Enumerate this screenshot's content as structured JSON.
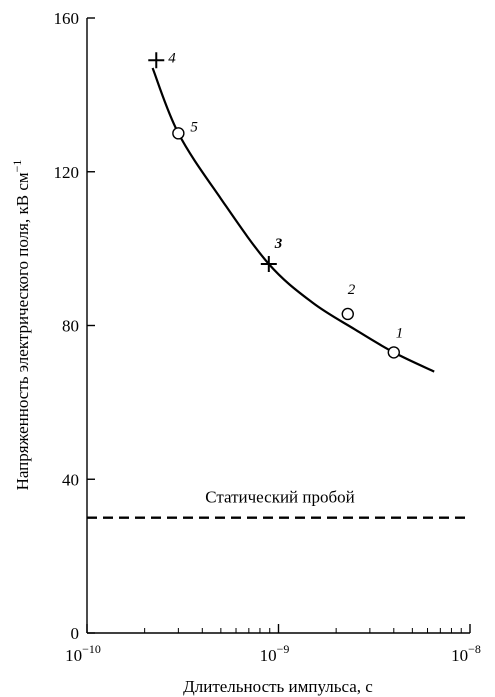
{
  "chart_data": {
    "type": "scatter",
    "xscale": "log",
    "xlim": [
      1e-10,
      1e-08
    ],
    "ylim": [
      0,
      160
    ],
    "xlabel": "Длительность импульса, с",
    "ylabel": "Напряженность электрического поля, кВ см",
    "ylabel_exponent": "−1",
    "x_ticks": [
      {
        "value": 1e-10,
        "base": "10",
        "exp": "−10"
      },
      {
        "value": 1e-09,
        "base": "10",
        "exp": "−9"
      },
      {
        "value": 1e-08,
        "base": "10",
        "exp": "−8"
      }
    ],
    "y_ticks": [
      {
        "value": 0,
        "label": "0"
      },
      {
        "value": 40,
        "label": "40"
      },
      {
        "value": 80,
        "label": "80"
      },
      {
        "value": 120,
        "label": "120"
      },
      {
        "value": 160,
        "label": "160"
      }
    ],
    "fit_curve": {
      "x": [
        2.2e-10,
        3e-10,
        5e-10,
        8.9e-10,
        1.5e-09,
        2.5e-09,
        4e-09,
        6.5e-09
      ],
      "y": [
        147,
        130,
        113,
        96,
        86,
        79,
        73,
        68
      ]
    },
    "points": [
      {
        "label": "1",
        "x": 4e-09,
        "y": 73,
        "marker": "circle"
      },
      {
        "label": "2",
        "x": 2.3e-09,
        "y": 83,
        "marker": "circle"
      },
      {
        "label": "3",
        "x": 8.9e-10,
        "y": 96,
        "marker": "plus",
        "bold": true
      },
      {
        "label": "4",
        "x": 2.3e-10,
        "y": 149,
        "marker": "plus"
      },
      {
        "label": "5",
        "x": 3e-10,
        "y": 130,
        "marker": "circle"
      }
    ],
    "reference_line": {
      "y": 30,
      "label": "Статический пробой",
      "style": "dashed"
    },
    "grid": false,
    "legend": "none"
  }
}
